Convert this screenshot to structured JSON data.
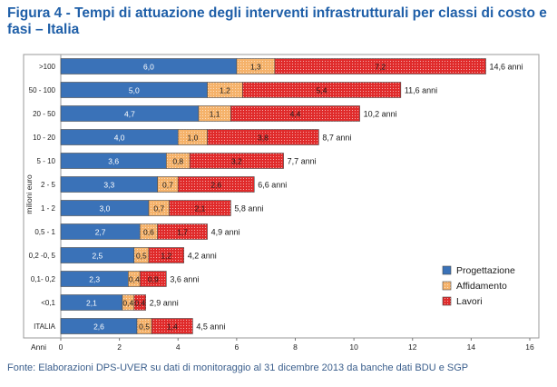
{
  "figure": {
    "title": "Figura 4 - Tempi di attuazione degli interventi infrastrutturali per classi di costo e fasi – Italia",
    "source": "Fonte: Elaborazioni DPS-UVER su dati di monitoraggio al 31 dicembre 2013 da banche dati BDU e SGP"
  },
  "chart_data": {
    "type": "bar",
    "orientation": "horizontal",
    "stacked": true,
    "categories": [
      ">100",
      "50 - 100",
      "20 - 50",
      "10 - 20",
      "5 - 10",
      "2 - 5",
      "1 - 2",
      "0,5 - 1",
      "0,2 -0, 5",
      "0,1- 0,2",
      "<0,1",
      "ITALIA"
    ],
    "series": [
      {
        "name": "Progettazione",
        "color": "#3a72b8",
        "pattern": "solid",
        "values": [
          6.0,
          5.0,
          4.7,
          4.0,
          3.6,
          3.3,
          3.0,
          2.7,
          2.5,
          2.3,
          2.1,
          2.6
        ],
        "labels": [
          "6,0",
          "5,0",
          "4,7",
          "4,0",
          "3,6",
          "3,3",
          "3,0",
          "2,7",
          "2,5",
          "2,3",
          "2,1",
          "2,6"
        ]
      },
      {
        "name": "Affidamento",
        "color": "#f5b26a",
        "pattern": "dots",
        "values": [
          1.3,
          1.2,
          1.1,
          1.0,
          0.8,
          0.7,
          0.7,
          0.6,
          0.5,
          0.4,
          0.4,
          0.5
        ],
        "labels": [
          "1,3",
          "1,2",
          "1,1",
          "1,0",
          "0,8",
          "0,7",
          "0,7",
          "0,6",
          "0,5",
          "0,4",
          "0,4",
          "0,5"
        ]
      },
      {
        "name": "Lavori",
        "color": "#e02b2b",
        "pattern": "dots",
        "values": [
          7.2,
          5.4,
          4.4,
          3.8,
          3.2,
          2.6,
          2.1,
          1.7,
          1.2,
          0.9,
          0.4,
          1.4
        ],
        "labels": [
          "7,2",
          "5,4",
          "4,4",
          "3,8",
          "3,2",
          "2,6",
          "2,1",
          "1,7",
          "1,2",
          "0,9",
          "0,4",
          "1,4"
        ]
      }
    ],
    "totals": [
      14.6,
      11.6,
      10.2,
      8.7,
      7.7,
      6.6,
      5.8,
      4.9,
      4.2,
      3.6,
      2.9,
      4.5
    ],
    "total_labels": [
      "14,6 anni",
      "11,6 anni",
      "10,2 anni",
      "8,7 anni",
      "7,7 anni",
      "6,6 anni",
      "5,8 anni",
      "4,9 anni",
      "4,2 anni",
      "3,6 anni",
      "2,9 anni",
      "4,5 anni"
    ],
    "xlabel": "Anni",
    "ylabel": "milioni euro",
    "xlim": [
      0,
      16
    ],
    "xticks": [
      0,
      2,
      4,
      6,
      8,
      10,
      12,
      14,
      16
    ],
    "grid": false,
    "legend_position": "bottom-right"
  }
}
